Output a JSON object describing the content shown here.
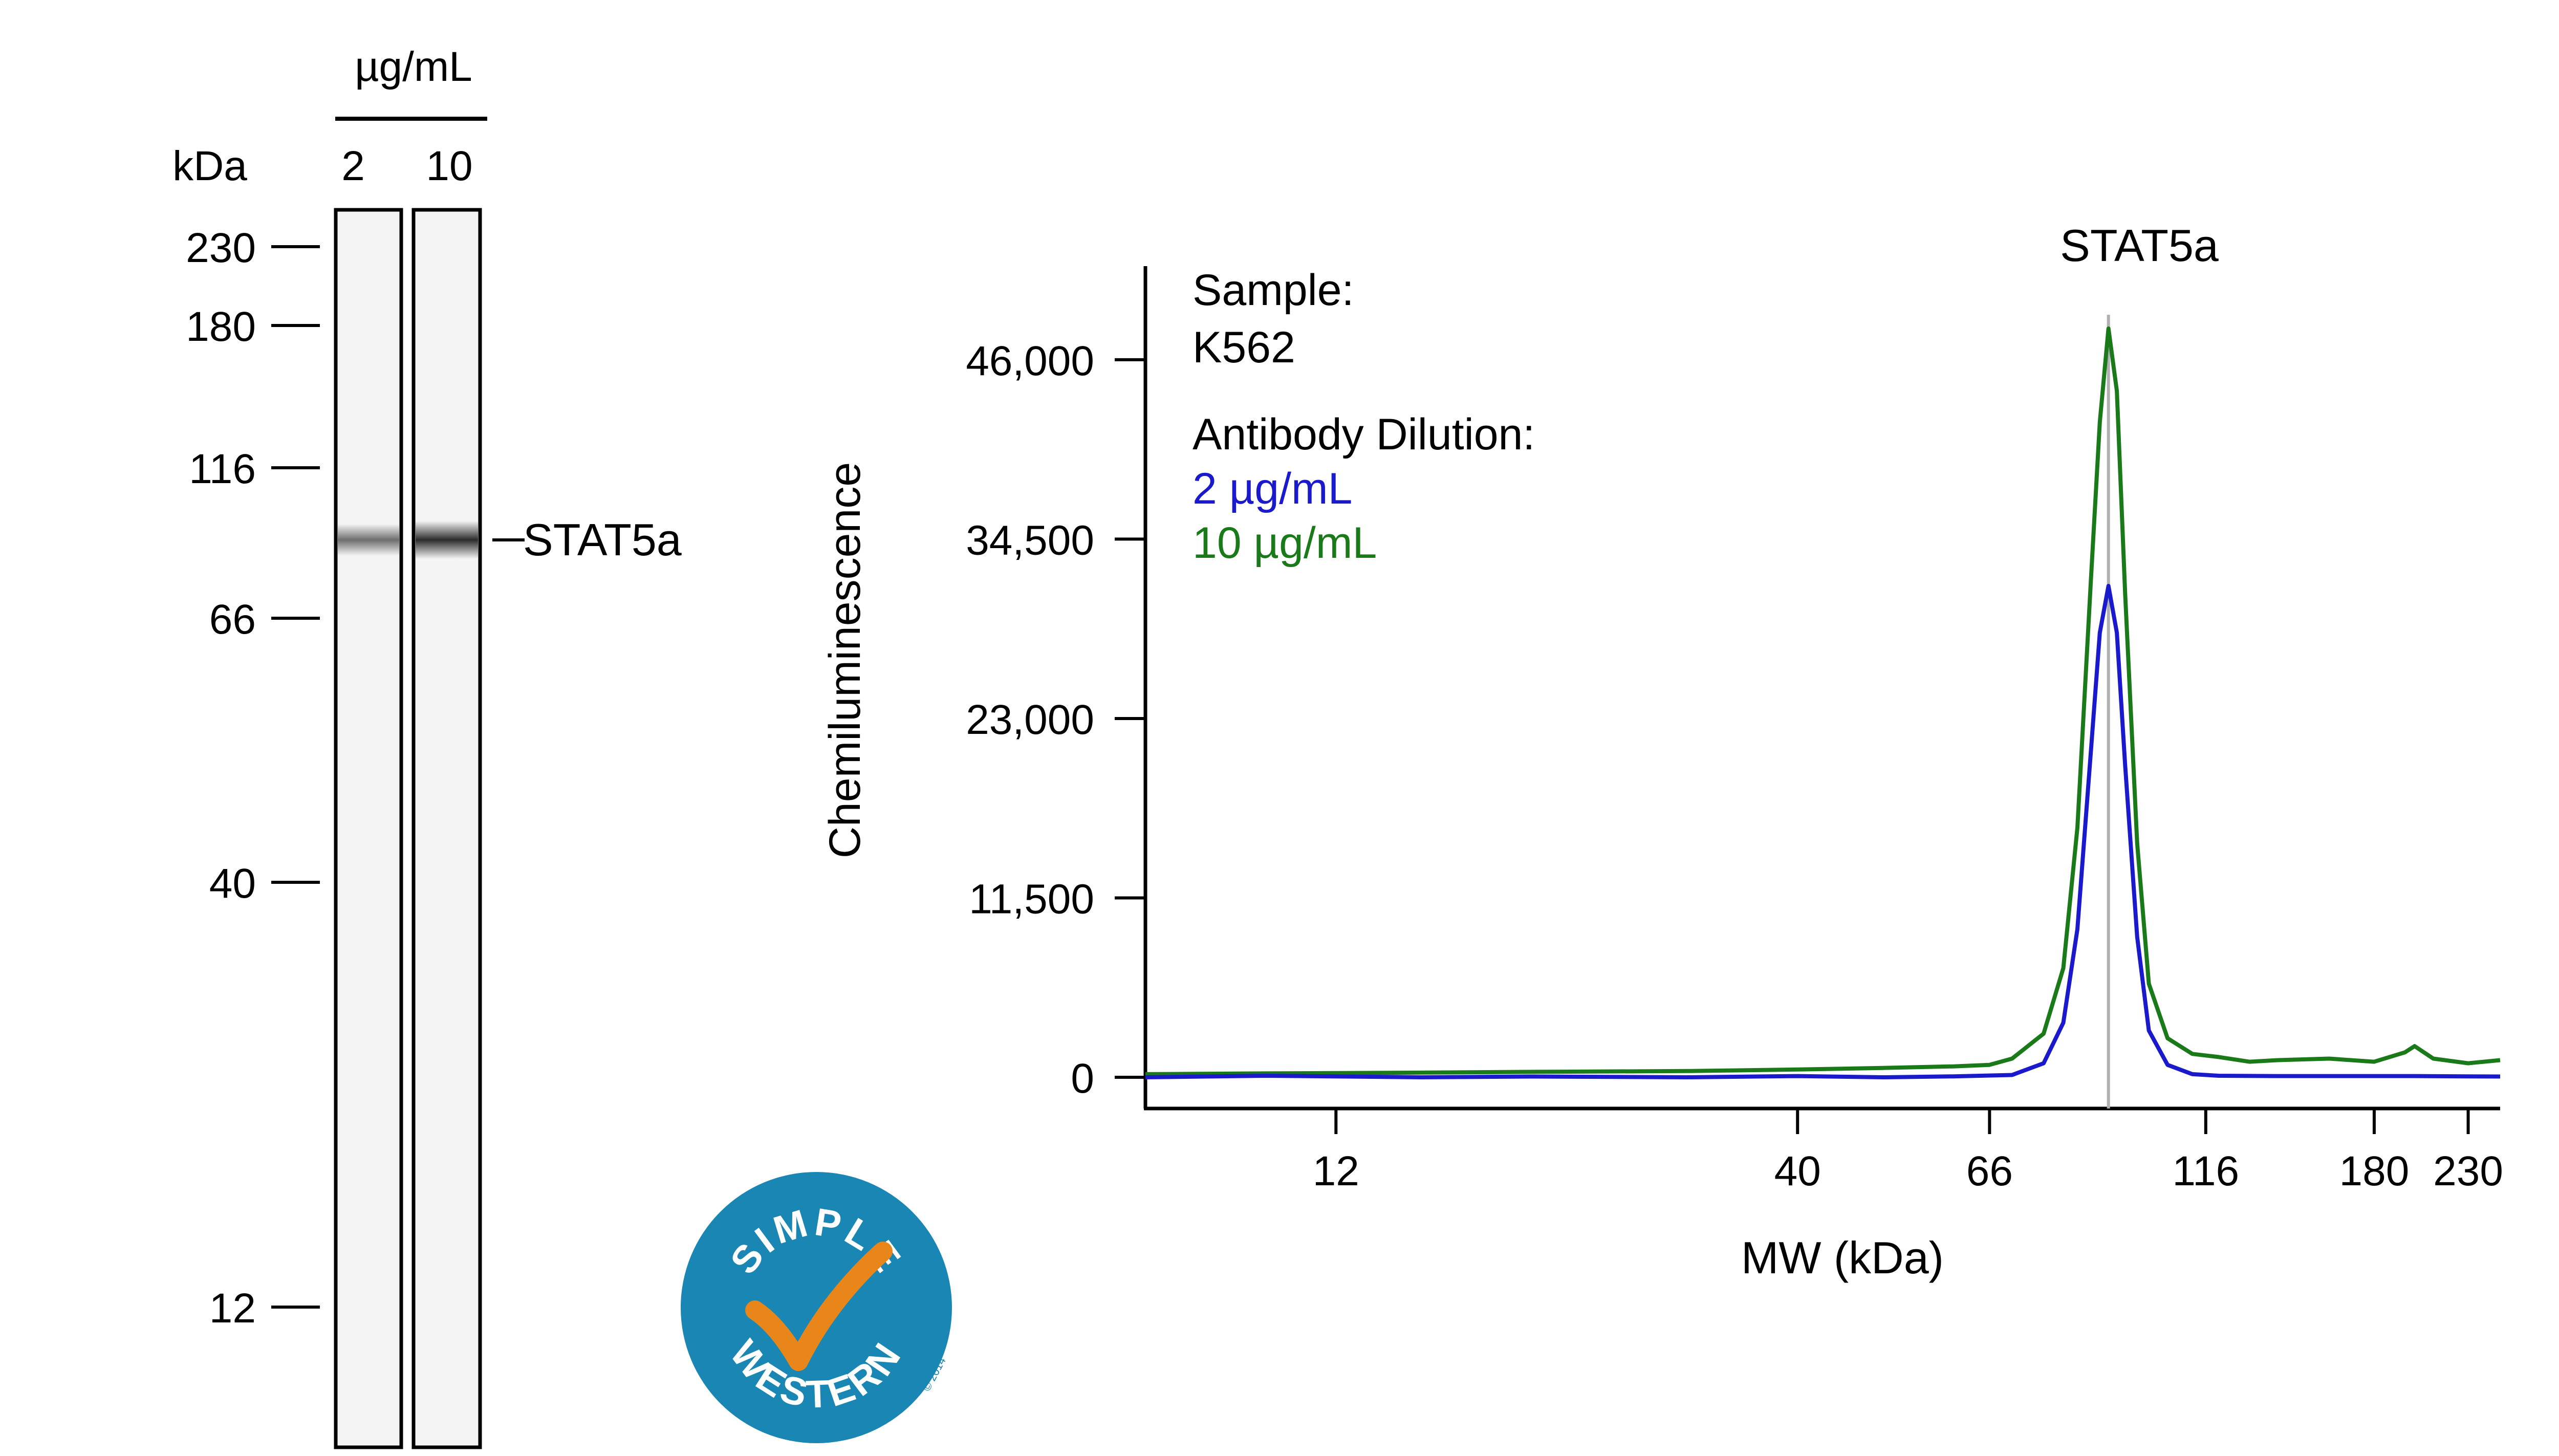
{
  "gel": {
    "concentration_label": "µg/mL",
    "kda_label": "kDa",
    "lanes": [
      "2",
      "10"
    ],
    "markers": [
      "230",
      "180",
      "116",
      "66",
      "40",
      "12"
    ],
    "band_label": "STAT5a",
    "band_intensity": [
      0.55,
      0.82
    ]
  },
  "logo": {
    "top_text": "SIMPLE",
    "bottom_text": "WESTERN",
    "copyright": "© 2014",
    "circle_color": "#1a86b4",
    "check_color": "#e8861a"
  },
  "colors": {
    "series_2": "#1a1acc",
    "series_10": "#1a7a1a",
    "peak_line": "#b0b0b0"
  },
  "chart_data": {
    "type": "line",
    "title": "STAT5a",
    "xlabel": "MW (kDa)",
    "ylabel": "Chemiluminescence",
    "x_scale": "log",
    "xlim": [
      7.3,
      250
    ],
    "ylim": [
      -2000,
      52000
    ],
    "xticks": [
      "12",
      "40",
      "66",
      "116",
      "180",
      "230"
    ],
    "xtick_values": [
      12,
      40,
      66,
      116,
      180,
      230
    ],
    "yticks": [
      "0",
      "11,500",
      "23,000",
      "34,500",
      "46,000"
    ],
    "ytick_values": [
      0,
      11500,
      23000,
      34500,
      46000
    ],
    "peak_marker_x": 90,
    "legend": {
      "sample_heading": "Sample:",
      "sample_value": "K562",
      "dilution_heading": "Antibody Dilution:",
      "entries": [
        "2 µg/mL",
        "10 µg/mL"
      ]
    },
    "series": [
      {
        "name": "2 µg/mL",
        "color": "#1a1acc",
        "x": [
          7.3,
          10,
          15,
          20,
          30,
          40,
          50,
          60,
          70,
          76,
          80,
          83,
          86,
          88,
          90,
          92,
          94,
          97,
          100,
          105,
          112,
          120,
          140,
          160,
          180,
          200,
          230,
          250
        ],
        "y": [
          0,
          100,
          0,
          50,
          0,
          80,
          0,
          60,
          150,
          900,
          3500,
          9500,
          21000,
          28500,
          31500,
          28500,
          20000,
          9000,
          3000,
          800,
          200,
          100,
          80,
          80,
          80,
          80,
          60,
          50
        ]
      },
      {
        "name": "10 µg/mL",
        "color": "#1a7a1a",
        "x": [
          7.3,
          10,
          15,
          20,
          30,
          40,
          50,
          60,
          66,
          70,
          76,
          80,
          83,
          86,
          88,
          90,
          92,
          94,
          97,
          100,
          105,
          112,
          120,
          130,
          140,
          160,
          180,
          195,
          200,
          210,
          230,
          250
        ],
        "y": [
          200,
          250,
          300,
          350,
          400,
          500,
          600,
          700,
          800,
          1200,
          2800,
          7000,
          16000,
          32000,
          42000,
          48000,
          44000,
          31000,
          15000,
          6000,
          2500,
          1500,
          1300,
          1000,
          1100,
          1200,
          1000,
          1600,
          2000,
          1200,
          900,
          1100
        ]
      }
    ]
  }
}
